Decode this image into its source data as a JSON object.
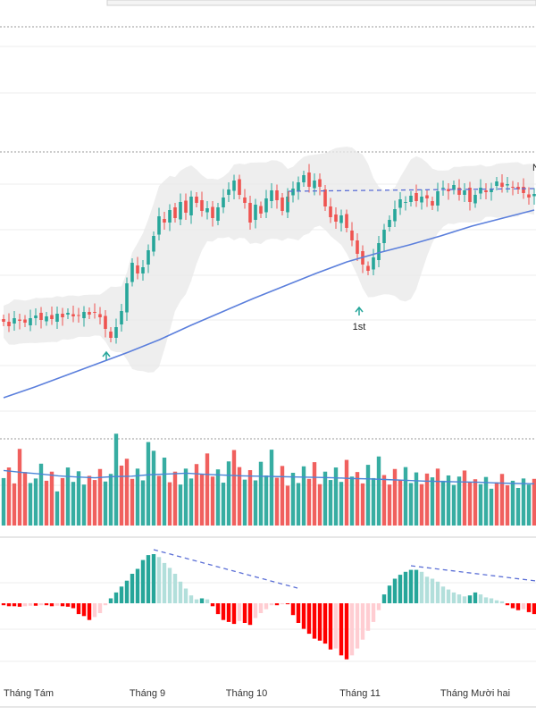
{
  "chart_data": [
    {
      "type": "candlestick",
      "panel": "price",
      "colors": {
        "up": "#26a69a",
        "down": "#ef5350",
        "ma": "#5b7fdc",
        "band": "#e8e8e8",
        "trendline": "#5b6fd6"
      },
      "candles_close": [
        97.0,
        96.5,
        97.4,
        97.1,
        96.9,
        97.4,
        97.7,
        97.2,
        97.6,
        97.3,
        97.9,
        97.5,
        98.0,
        97.6,
        97.7,
        98.1,
        97.8,
        98.0,
        97.5,
        96.2,
        95.2,
        96.4,
        98.2,
        101.3,
        103.6,
        102.4,
        103.1,
        105.0,
        106.6,
        108.8,
        108.1,
        109.5,
        108.6,
        110.4,
        109.2,
        111.0,
        110.3,
        109.4,
        109.7,
        108.6,
        109.8,
        110.9,
        111.8,
        112.8,
        111.2,
        110.3,
        108.1,
        110.1,
        109.1,
        110.8,
        111.7,
        110.6,
        109.4,
        111.0,
        111.9,
        112.6,
        113.4,
        112.1,
        112.8,
        112.1,
        109.9,
        108.7,
        108.2,
        108.9,
        107.5,
        106.1,
        104.6,
        103.4,
        102.7,
        104.2,
        105.8,
        107.3,
        108.4,
        109.6,
        110.7,
        110.4,
        111.1,
        110.5,
        111.0,
        110.8,
        110.0,
        111.6,
        112.0,
        111.6,
        112.3,
        111.2,
        111.7,
        110.4,
        111.2,
        112.0,
        111.5,
        111.9,
        112.7,
        112.1,
        112.4,
        112.1,
        111.8,
        111.4,
        110.9,
        111.3
      ],
      "moving_average": [
        88.5,
        89.7,
        91.0,
        92.3,
        93.6,
        95.0,
        96.6,
        98.1,
        99.6,
        101.0,
        102.4,
        103.7,
        104.7,
        105.6,
        106.6,
        107.7,
        108.6,
        109.5
      ],
      "markers": [
        {
          "label": "",
          "direction": "up"
        },
        {
          "label": "1st",
          "direction": "up"
        },
        {
          "label": "N",
          "direction": "none"
        }
      ]
    },
    {
      "type": "bar",
      "panel": "volume",
      "values": [
        12.5,
        15.3,
        11.1,
        20.2,
        14.1,
        11.2,
        12.4,
        16.3,
        11.8,
        14.2,
        9.0,
        12.5,
        15.3,
        11.5,
        14.3,
        10.8,
        13.1,
        12.0,
        14.9,
        11.6,
        13.6,
        24.2,
        15.8,
        17.6,
        12.3,
        15.0,
        11.9,
        22.0,
        19.7,
        13.1,
        17.9,
        11.4,
        14.2,
        10.8,
        15.0,
        12.4,
        16.2,
        13.5,
        19.0,
        12.9,
        14.8,
        11.3,
        16.9,
        19.9,
        15.4,
        12.1,
        14.6,
        11.9,
        16.8,
        13.2,
        20.0,
        12.6,
        15.7,
        10.5,
        13.9,
        11.2,
        15.6,
        12.3,
        16.7,
        10.9,
        14.2,
        12.0,
        15.3,
        11.5,
        17.3,
        12.9,
        14.1,
        11.1,
        16.0,
        12.5,
        18.2,
        13.3,
        10.8,
        14.9,
        11.9,
        15.4,
        11.2,
        14.0,
        10.9,
        13.7,
        12.7,
        15.0,
        11.8,
        13.2,
        10.7,
        12.9,
        14.5,
        11.4,
        12.2,
        10.9,
        12.8,
        9.7,
        11.4,
        13.6,
        10.6,
        11.8,
        9.9,
        12.4,
        10.8,
        12.3
      ],
      "volume_ma": [
        14.5,
        14.0,
        13.6,
        13.1,
        12.8,
        12.6,
        12.9,
        13.0,
        13.4,
        13.6,
        13.8,
        13.5,
        13.3,
        13.1,
        13.0,
        12.9,
        12.8,
        12.7,
        12.6,
        12.4,
        12.3,
        12.1,
        11.9,
        11.7,
        11.6,
        11.5,
        11.4,
        11.2,
        11.1,
        11.0
      ],
      "colors": {
        "up": "#26a69a",
        "down": "#ef5350",
        "ma": "#4a86d8"
      }
    },
    {
      "type": "bar",
      "panel": "macd_histogram",
      "values": [
        -0.2,
        -0.3,
        -0.3,
        -0.35,
        -0.3,
        -0.25,
        -0.25,
        -0.2,
        -0.2,
        -0.3,
        -0.25,
        -0.3,
        -0.35,
        -0.5,
        -1.1,
        -1.3,
        -1.7,
        -1.4,
        -1.0,
        -0.2,
        0.5,
        1.1,
        1.7,
        2.3,
        3.0,
        3.5,
        4.4,
        4.9,
        5.0,
        4.7,
        4.1,
        3.6,
        3.0,
        2.2,
        1.5,
        0.8,
        0.4,
        0.5,
        0.4,
        -0.3,
        -1.1,
        -1.7,
        -1.9,
        -2.1,
        -1.8,
        -2.0,
        -2.2,
        -1.5,
        -1.0,
        -0.6,
        -0.2,
        -0.2,
        -0.1,
        -0.1,
        -1.2,
        -2.0,
        -2.6,
        -3.1,
        -3.6,
        -3.8,
        -4.1,
        -4.7,
        -4.6,
        -5.3,
        -5.7,
        -5.3,
        -4.6,
        -3.7,
        -2.8,
        -1.9,
        -0.7,
        0.9,
        1.8,
        2.5,
        2.9,
        3.2,
        3.4,
        3.4,
        3.2,
        2.7,
        2.5,
        2.2,
        1.7,
        1.4,
        1.1,
        0.9,
        0.7,
        0.8,
        1.1,
        0.9,
        0.6,
        0.5,
        0.3,
        0.2,
        -0.2,
        -0.5,
        -0.7,
        -0.6,
        -0.9,
        -1.1
      ],
      "colors": {
        "strong_up": "#26a69a",
        "weak_up": "#b2dfdb",
        "strong_down": "#ff0000",
        "weak_down": "#ffcdd2",
        "trendline": "#5b6fd6"
      }
    }
  ],
  "x_axis": {
    "tick_labels": [
      "Tháng Tám",
      "Tháng 9",
      "Tháng 10",
      "Tháng 11",
      "Tháng Mười hai"
    ]
  },
  "marker_text": {
    "first": "1st",
    "partial": "N"
  }
}
